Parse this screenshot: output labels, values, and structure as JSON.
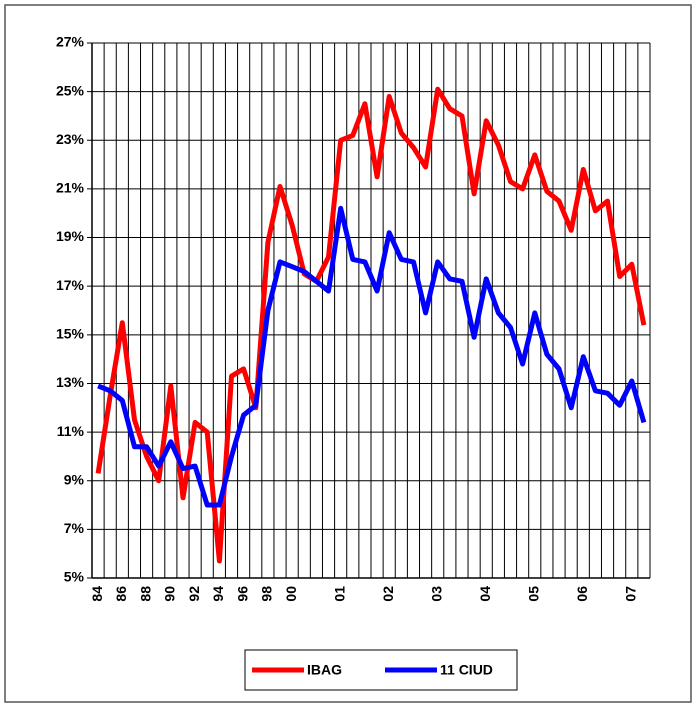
{
  "chart_data": {
    "type": "line",
    "categories": [
      "84",
      null,
      "86",
      null,
      "88",
      null,
      "90",
      null,
      "92",
      null,
      "94",
      null,
      "96",
      null,
      "98",
      null,
      "00",
      null,
      null,
      null,
      "01",
      null,
      null,
      null,
      "02",
      null,
      null,
      null,
      "03",
      null,
      null,
      null,
      "04",
      null,
      null,
      null,
      "05",
      null,
      null,
      null,
      "06",
      null,
      null,
      null,
      "07",
      null
    ],
    "series": [
      {
        "name": "IBAG",
        "color": "#ff0000",
        "values": [
          9.3,
          12.5,
          15.5,
          11.5,
          10,
          9,
          12.9,
          8.3,
          11.4,
          11,
          5.7,
          13.3,
          13.6,
          12,
          18.8,
          21.1,
          19.5,
          17.5,
          17.2,
          18.2,
          23,
          23.2,
          24.5,
          21.5,
          24.8,
          23.3,
          22.7,
          21.9,
          25.1,
          24.3,
          24,
          20.8,
          23.8,
          22.8,
          21.3,
          21,
          22.4,
          20.9,
          20.5,
          19.3,
          21.8,
          20.1,
          20.5,
          17.4,
          17.9,
          15.4
        ]
      },
      {
        "name": "11 CIUD",
        "color": "#0000ff",
        "values": [
          12.9,
          12.7,
          12.3,
          10.4,
          10.4,
          9.6,
          10.6,
          9.5,
          9.6,
          8,
          8,
          10,
          11.7,
          12.1,
          16,
          18,
          17.8,
          17.6,
          17.2,
          16.8,
          20.2,
          18.1,
          18,
          16.8,
          19.2,
          18.1,
          18,
          15.9,
          18,
          17.3,
          17.2,
          14.9,
          17.3,
          15.9,
          15.3,
          13.8,
          15.9,
          14.2,
          13.6,
          12,
          14.1,
          12.7,
          12.6,
          12.1,
          13.1,
          11.4
        ]
      }
    ],
    "ylim": [
      5,
      27
    ],
    "yticks": [
      {
        "value": 5,
        "label": "5%"
      },
      {
        "value": 7,
        "label": "7%"
      },
      {
        "value": 9,
        "label": "9%"
      },
      {
        "value": 11,
        "label": "11%"
      },
      {
        "value": 13,
        "label": "13%"
      },
      {
        "value": 15,
        "label": "15%"
      },
      {
        "value": 17,
        "label": "17%"
      },
      {
        "value": 19,
        "label": "19%"
      },
      {
        "value": 21,
        "label": "21%"
      },
      {
        "value": 23,
        "label": "23%"
      },
      {
        "value": 25,
        "label": "25%"
      },
      {
        "value": 27,
        "label": "27%"
      }
    ],
    "grid": true
  }
}
